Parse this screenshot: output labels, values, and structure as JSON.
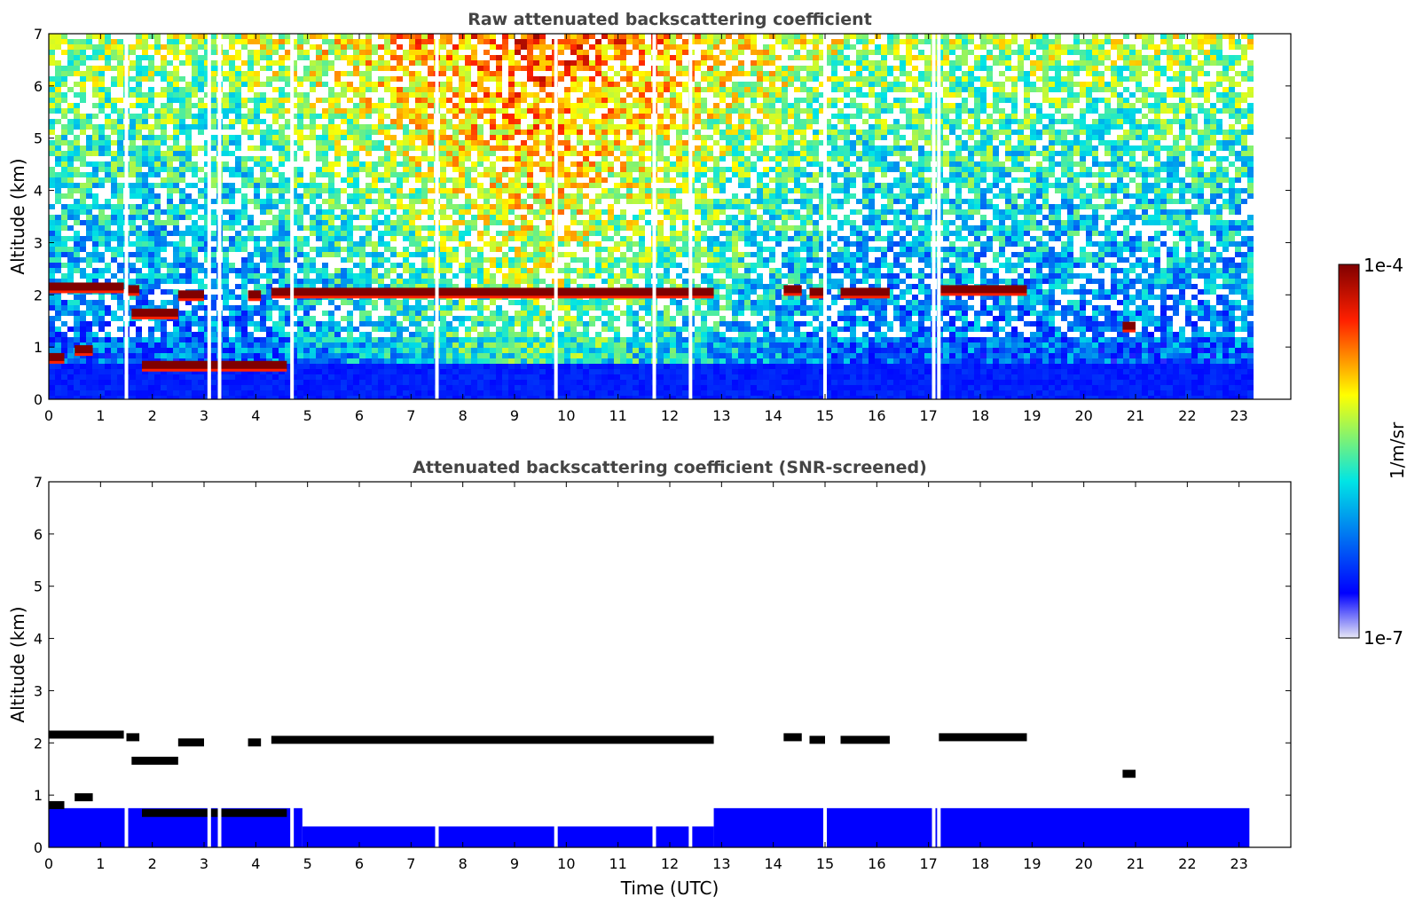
{
  "colors": {
    "lowest": "#e6e6f5",
    "low": "#0000ff",
    "mid": "#00e5e5",
    "midhigh": "#ffff00",
    "high": "#ff2000",
    "highest": "#800000",
    "cloud_screened": "#000000",
    "frame": "#000000",
    "title": "#444444"
  },
  "colorbar": {
    "min_label": "1e-7",
    "max_label": "1e-4",
    "label": "1/m/sr",
    "scale": "log",
    "range": [
      1e-07,
      0.0001
    ]
  },
  "chart_data": [
    {
      "type": "heatmap",
      "title": "Raw attenuated backscattering coefficient",
      "xlabel": "",
      "ylabel": "Altitude (km)",
      "xlim": [
        0,
        24
      ],
      "ylim": [
        0,
        7
      ],
      "xticks": [
        "0",
        "1",
        "2",
        "3",
        "4",
        "5",
        "6",
        "7",
        "8",
        "9",
        "10",
        "11",
        "12",
        "13",
        "14",
        "15",
        "16",
        "17",
        "18",
        "19",
        "20",
        "21",
        "22",
        "23"
      ],
      "yticks": [
        "0",
        "1",
        "2",
        "3",
        "4",
        "5",
        "6",
        "7"
      ],
      "data_end_hour": 23.2,
      "cloud_layers": [
        {
          "start": 0.0,
          "end": 1.45,
          "altitude_km": 2.15
        },
        {
          "start": 1.5,
          "end": 1.75,
          "altitude_km": 2.1
        },
        {
          "start": 2.5,
          "end": 3.0,
          "altitude_km": 2.0
        },
        {
          "start": 3.85,
          "end": 4.1,
          "altitude_km": 2.0
        },
        {
          "start": 4.3,
          "end": 12.85,
          "altitude_km": 2.05
        },
        {
          "start": 14.2,
          "end": 14.55,
          "altitude_km": 2.1
        },
        {
          "start": 14.7,
          "end": 15.0,
          "altitude_km": 2.05
        },
        {
          "start": 15.3,
          "end": 16.25,
          "altitude_km": 2.05
        },
        {
          "start": 17.2,
          "end": 18.9,
          "altitude_km": 2.1
        },
        {
          "start": 20.75,
          "end": 21.0,
          "altitude_km": 1.4
        },
        {
          "start": 0.0,
          "end": 0.3,
          "altitude_km": 0.8
        },
        {
          "start": 0.5,
          "end": 0.85,
          "altitude_km": 0.95
        },
        {
          "start": 1.8,
          "end": 4.6,
          "altitude_km": 0.65
        },
        {
          "start": 1.6,
          "end": 2.5,
          "altitude_km": 1.65
        }
      ],
      "gaps_hours": [
        1.5,
        3.1,
        3.3,
        4.7,
        7.5,
        9.8,
        11.7,
        12.4,
        15.0,
        17.1,
        17.2
      ]
    },
    {
      "type": "heatmap",
      "title": "Attenuated backscattering coefficient (SNR-screened)",
      "xlabel": "Time (UTC)",
      "ylabel": "Altitude (km)",
      "xlim": [
        0,
        24
      ],
      "ylim": [
        0,
        7
      ],
      "xticks": [
        "0",
        "1",
        "2",
        "3",
        "4",
        "5",
        "6",
        "7",
        "8",
        "9",
        "10",
        "11",
        "12",
        "13",
        "14",
        "15",
        "16",
        "17",
        "18",
        "19",
        "20",
        "21",
        "22",
        "23"
      ],
      "yticks": [
        "0",
        "1",
        "2",
        "3",
        "4",
        "5",
        "6",
        "7"
      ],
      "data_end_hour": 23.2,
      "boundary_layer_top_km": [
        {
          "start": 0.0,
          "end": 4.9,
          "top": 0.75
        },
        {
          "start": 4.9,
          "end": 12.85,
          "top": 0.4
        },
        {
          "start": 12.85,
          "end": 23.2,
          "top": 0.75
        }
      ]
    }
  ]
}
